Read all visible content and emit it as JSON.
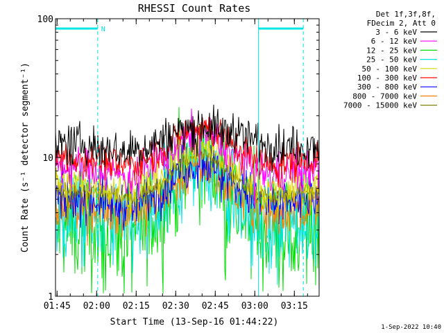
{
  "chart_data": {
    "type": "line",
    "title": "RHESSI Count Rates",
    "xlabel": "Start Time (13-Sep-16 01:44:22)",
    "ylabel": "Count Rate (s⁻¹ detector segment⁻¹)",
    "yscale": "log",
    "ylim": [
      1,
      100
    ],
    "xlim_minutes": [
      0,
      100
    ],
    "x_ticks": [
      {
        "label": "01:45",
        "minute": 0.6
      },
      {
        "label": "02:00",
        "minute": 15.6
      },
      {
        "label": "02:15",
        "minute": 30.6
      },
      {
        "label": "02:30",
        "minute": 45.6
      },
      {
        "label": "02:45",
        "minute": 60.6
      },
      {
        "label": "03:00",
        "minute": 75.6
      },
      {
        "label": "03:15",
        "minute": 90.6
      }
    ],
    "y_ticks": [
      {
        "label": "1",
        "value": 1
      },
      {
        "label": "10",
        "value": 10
      },
      {
        "label": "100",
        "value": 100
      }
    ],
    "legend_header": [
      "Det 1f,3f,8f,",
      "FDecim 2, Att 0"
    ],
    "series": [
      {
        "name": "3 - 6 keV",
        "color": "#000000",
        "base": 12.5,
        "peak": 17,
        "noise": 0.12
      },
      {
        "name": "6 - 12 keV",
        "color": "#ff00ff",
        "base": 8.5,
        "peak": 15,
        "noise": 0.12
      },
      {
        "name": "12 - 25 keV",
        "color": "#00dd00",
        "base": 3.2,
        "peak": 10,
        "noise": 0.35
      },
      {
        "name": "25 - 50 keV",
        "color": "#00e5e5",
        "base": 3.6,
        "peak": 9.5,
        "noise": 0.28
      },
      {
        "name": "50 - 100 keV",
        "color": "#d8d800",
        "base": 6.5,
        "peak": 12.5,
        "noise": 0.12
      },
      {
        "name": "100 - 300 keV",
        "color": "#ff0000",
        "base": 10,
        "peak": 17,
        "noise": 0.1
      },
      {
        "name": "300 - 800 keV",
        "color": "#0000ff",
        "base": 5.2,
        "peak": 9.5,
        "noise": 0.14
      },
      {
        "name": "800 - 7000 keV",
        "color": "#ff8000",
        "base": 4.5,
        "peak": 8.5,
        "noise": 0.13
      },
      {
        "name": "7000 - 15000 keV",
        "color": "#808000",
        "base": 5.8,
        "peak": 10.5,
        "noise": 0.05
      }
    ],
    "flags": [
      {
        "label": "N",
        "color": "#00e5e5",
        "start_minute": 0,
        "end_minute": 16,
        "value": 85
      },
      {
        "label": "",
        "color": "#00e5e5",
        "start_minute": 77,
        "end_minute": 94,
        "value": 85
      }
    ],
    "vlines": [
      {
        "minute": 0,
        "style": "solid"
      },
      {
        "minute": 16,
        "style": "dashed"
      },
      {
        "minute": 77,
        "style": "solid"
      },
      {
        "minute": 94,
        "style": "dashed"
      }
    ]
  },
  "footer": {
    "timestamp": "1-Sep-2022 10:40"
  },
  "theme": {
    "axis_color": "#000000",
    "flag_color": "#00e5e5"
  }
}
